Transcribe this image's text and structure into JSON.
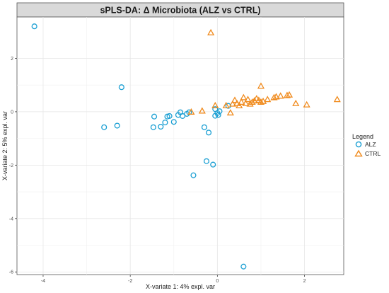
{
  "chart_data": {
    "type": "scatter",
    "title": "sPLS-DA: Δ Microbiota (ALZ vs CTRL)",
    "xlabel": "X-variate 1: 4% expl. var",
    "ylabel": "X-variate 2: 5% expl. var",
    "xlim": [
      -4.6,
      2.9
    ],
    "ylim": [
      -6.1,
      3.55
    ],
    "xticks": [
      -4,
      -2,
      0,
      2
    ],
    "yticks": [
      2,
      0,
      -2,
      -4,
      -6
    ],
    "grid": true,
    "legend_placement": "right",
    "legend": {
      "title": "Legend",
      "entries": [
        {
          "name": "ALZ",
          "marker": "circle",
          "color": "#1a9fd3"
        },
        {
          "name": "CTRL",
          "marker": "triangle",
          "color": "#f08a1c"
        }
      ]
    },
    "series": [
      {
        "name": "ALZ",
        "marker": "circle",
        "color": "#1a9fd3",
        "points": [
          [
            -4.2,
            3.2
          ],
          [
            -2.2,
            0.92
          ],
          [
            -2.6,
            -0.58
          ],
          [
            -2.3,
            -0.52
          ],
          [
            -1.45,
            -0.18
          ],
          [
            -1.47,
            -0.58
          ],
          [
            -1.3,
            -0.56
          ],
          [
            -1.2,
            -0.4
          ],
          [
            -1.15,
            -0.18
          ],
          [
            -1.1,
            -0.16
          ],
          [
            -1.0,
            -0.38
          ],
          [
            -0.9,
            -0.12
          ],
          [
            -0.85,
            -0.02
          ],
          [
            -0.8,
            -0.16
          ],
          [
            -0.7,
            -0.08
          ],
          [
            -0.65,
            -0.02
          ],
          [
            -0.3,
            -0.58
          ],
          [
            -0.25,
            -1.85
          ],
          [
            -0.2,
            -0.78
          ],
          [
            -0.1,
            -1.98
          ],
          [
            -0.55,
            -2.38
          ],
          [
            -0.05,
            0.1
          ],
          [
            0.0,
            -0.05
          ],
          [
            0.02,
            -0.12
          ],
          [
            0.05,
            0.02
          ],
          [
            -0.05,
            -0.15
          ],
          [
            0.25,
            0.22
          ],
          [
            0.6,
            -5.8
          ]
        ]
      },
      {
        "name": "CTRL",
        "marker": "triangle",
        "color": "#f08a1c",
        "points": [
          [
            -0.15,
            2.95
          ],
          [
            -0.6,
            -0.02
          ],
          [
            -0.35,
            0.02
          ],
          [
            -0.05,
            0.22
          ],
          [
            0.3,
            -0.05
          ],
          [
            0.2,
            0.22
          ],
          [
            0.35,
            0.28
          ],
          [
            0.4,
            0.42
          ],
          [
            0.45,
            0.3
          ],
          [
            0.5,
            0.22
          ],
          [
            0.55,
            0.35
          ],
          [
            0.6,
            0.52
          ],
          [
            0.65,
            0.3
          ],
          [
            0.7,
            0.45
          ],
          [
            0.75,
            0.28
          ],
          [
            0.8,
            0.35
          ],
          [
            0.85,
            0.4
          ],
          [
            0.9,
            0.48
          ],
          [
            0.95,
            0.42
          ],
          [
            1.0,
            0.35
          ],
          [
            1.05,
            0.38
          ],
          [
            1.0,
            0.95
          ],
          [
            1.15,
            0.45
          ],
          [
            1.3,
            0.52
          ],
          [
            1.35,
            0.55
          ],
          [
            1.45,
            0.58
          ],
          [
            1.6,
            0.6
          ],
          [
            1.65,
            0.62
          ],
          [
            1.8,
            0.3
          ],
          [
            2.05,
            0.25
          ],
          [
            2.75,
            0.45
          ]
        ]
      }
    ]
  }
}
